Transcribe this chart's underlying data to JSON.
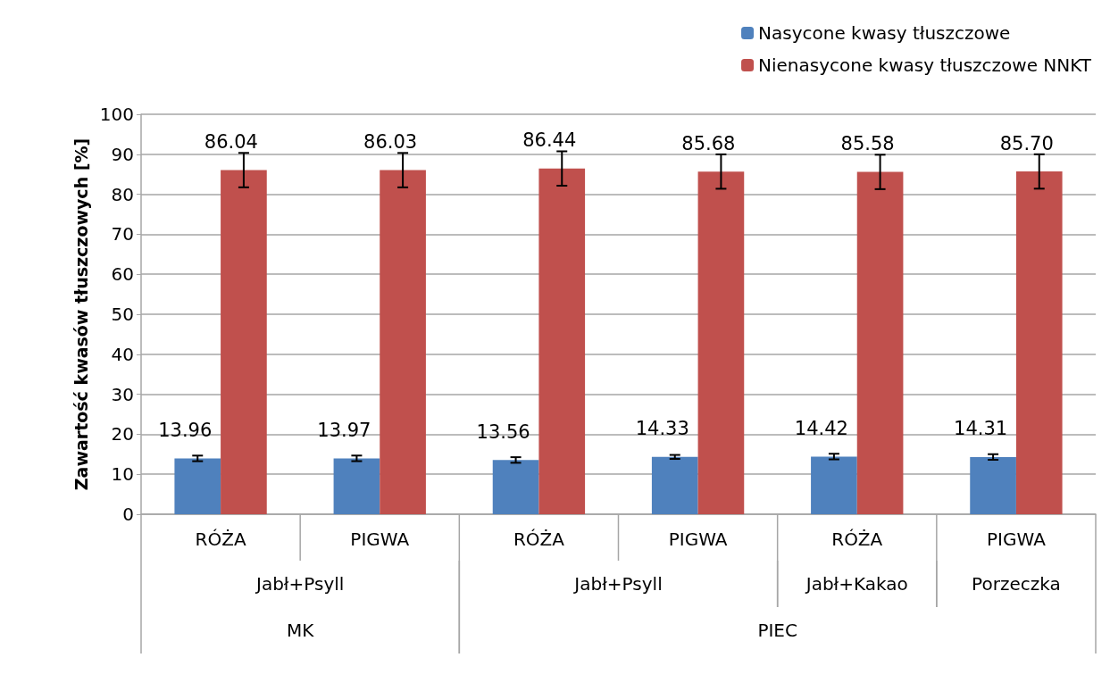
{
  "chart_data": {
    "type": "bar",
    "ylabel": "Zawartość kwasów tłuszczowych [%]",
    "categories": [
      "RÓŻA",
      "PIGWA",
      "RÓŻA",
      "PIGWA",
      "RÓŻA",
      "PIGWA"
    ],
    "series": [
      {
        "name": "Nasycone kwasy tłuszczowe",
        "color": "#4f81bd",
        "values": [
          13.96,
          13.97,
          13.56,
          14.33,
          14.42,
          14.31
        ],
        "errors": [
          0.7,
          0.7,
          0.7,
          0.5,
          0.7,
          0.7
        ],
        "value_labels": [
          "13.96",
          "13.97",
          "13.56",
          "14.33",
          "14.42",
          "14.31"
        ]
      },
      {
        "name": "Nienasycone kwasy tłuszczowe NNKT",
        "color": "#c0504d",
        "values": [
          86.04,
          86.03,
          86.44,
          85.68,
          85.58,
          85.7
        ],
        "errors": [
          4.3,
          4.3,
          4.3,
          4.3,
          4.3,
          4.3
        ],
        "value_labels": [
          "86.04",
          "86.03",
          "86.44",
          "85.68",
          "85.58",
          "85.70"
        ]
      }
    ],
    "annotations": [
      "Jabł+Psyll",
      "Jabł+Psyll",
      "Jabł+Kakao",
      "Porzeczka",
      "MK",
      "PIEC"
    ],
    "ylim": [
      0,
      100
    ],
    "yticks": [
      0,
      10,
      20,
      30,
      40,
      50,
      60,
      70,
      80,
      90,
      100
    ],
    "grid": "y",
    "legend": "top right"
  }
}
